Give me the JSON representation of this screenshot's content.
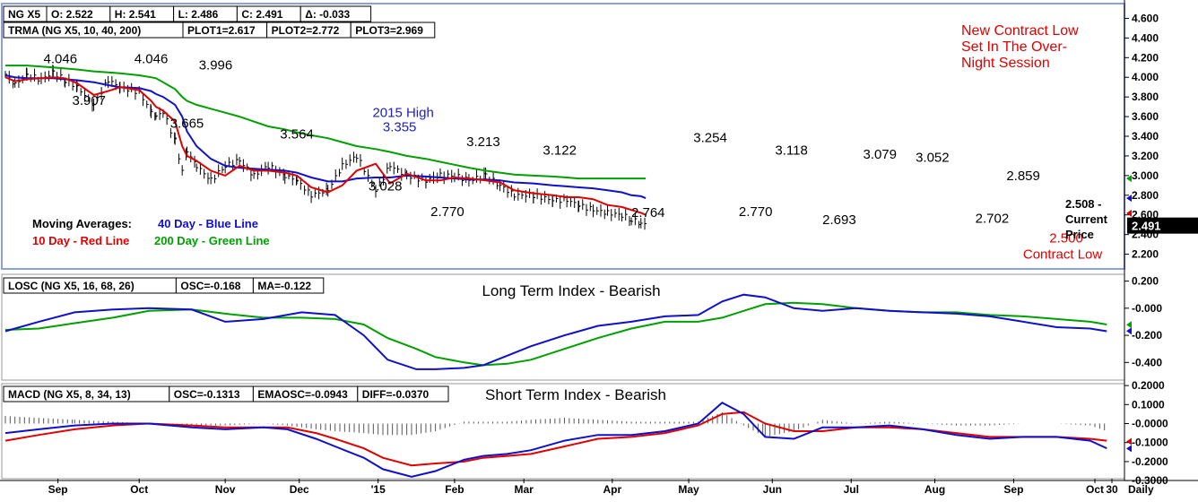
{
  "main_panel": {
    "info_bar_1": [
      "NG X5",
      "O: 2.522",
      "H: 2.541",
      "L: 2.486",
      "C: 2.491",
      "Δ: -0.033"
    ],
    "info_bar_2": [
      "TRMA (NG X5, 10, 40, 200)",
      "PLOT1=2.617",
      "PLOT2=2.772",
      "PLOT3=2.969"
    ],
    "legend": {
      "heading": "Moving Averages:",
      "ma40": "40 Day - Blue Line",
      "ma10": "10 Day - Red Line",
      "ma200": "200 Day - Green Line"
    },
    "note_lines": [
      "New Contract Low",
      "Set In The Over-",
      "Night Session"
    ],
    "current_price_lines": [
      "2.508 -",
      "Current",
      "Price"
    ],
    "last_price_tag": "2.491",
    "contract_low_label": "Contract Low",
    "high_annotation": "2015 High",
    "y_ticks": [
      "4.600",
      "4.400",
      "4.200",
      "4.000",
      "3.800",
      "3.600",
      "3.400",
      "3.200",
      "3.000",
      "2.800",
      "2.600",
      "2.400",
      "2.200"
    ],
    "ylim": [
      2.05,
      4.75
    ]
  },
  "losc_panel": {
    "info_bar": [
      "LOSC (NG X5, 16, 68, 26)",
      "OSC=-0.168",
      "MA=-0.122"
    ],
    "title": "Long Term Index - Bearish",
    "y_ticks": [
      "0.200",
      "-0.000",
      "-0.200",
      "-0.400"
    ],
    "ylim": [
      -0.53,
      0.25
    ]
  },
  "macd_panel": {
    "info_bar": [
      "MACD (NG X5, 8, 34, 13)",
      "OSC=-0.1313",
      "EMAOSC=-0.0943",
      "DIFF=-0.0370"
    ],
    "title": "Short Term Index - Bearish",
    "y_ticks": [
      "0.2000",
      "0.1000",
      "-0.0000",
      "-0.1000",
      "-0.2000",
      "-0.3000"
    ],
    "ylim": [
      -0.29,
      0.21
    ]
  },
  "x_axis": {
    "labels": [
      "Sep",
      "Oct",
      "Nov",
      "Dec",
      "'15",
      "Feb",
      "Mar",
      "Apr",
      "May",
      "Jun",
      "Jul",
      "Aug",
      "Sep",
      "Oct",
      "30"
    ],
    "frequency_label": "Daily"
  },
  "colors": {
    "ma10": "#e00000",
    "ma40": "#1010c8",
    "ma200": "#00a000",
    "annotation_red": "#e00000",
    "annotation_blue": "#2020c0",
    "frame_blue": "#8aa0e0",
    "bars": "#000000"
  },
  "chart_data": [
    {
      "type": "line",
      "title": "",
      "series_note": "NG X5 daily price with 10/40/200 day moving averages",
      "t": [
        0,
        4,
        9,
        15,
        20,
        25,
        30,
        37,
        43,
        48,
        56,
        61,
        63,
        66,
        71,
        74,
        76,
        80,
        86,
        92,
        98,
        104,
        110,
        117,
        122,
        128,
        135,
        141,
        147,
        155,
        161,
        168,
        176,
        182,
        188,
        194,
        201,
        207,
        213,
        221,
        229,
        235,
        240,
        246,
        252,
        258,
        262,
        266,
        268
      ],
      "close": [
        4.03,
        3.93,
        4.02,
        3.98,
        4.05,
        3.97,
        3.9,
        3.72,
        3.97,
        3.9,
        3.85,
        3.65,
        3.6,
        3.65,
        3.35,
        3.05,
        3.25,
        3.1,
        2.95,
        3.1,
        3.15,
        3.0,
        3.1,
        3.0,
        2.95,
        2.8,
        2.85,
        3.1,
        3.2,
        2.85,
        3.1,
        3.0,
        2.95,
        3.0,
        3.0,
        2.95,
        3.0,
        2.9,
        2.8,
        2.8,
        2.75,
        2.75,
        2.7,
        2.65,
        2.62,
        2.6,
        2.55,
        2.52,
        2.49
      ],
      "series": [
        {
          "name": "10 Day - Red Line",
          "values": [
            4.0,
            3.96,
            3.98,
            3.99,
            4.0,
            3.99,
            3.94,
            3.82,
            3.86,
            3.9,
            3.87,
            3.76,
            3.7,
            3.66,
            3.55,
            3.3,
            3.2,
            3.15,
            3.05,
            3.0,
            3.1,
            3.05,
            3.05,
            3.03,
            3.0,
            2.88,
            2.83,
            2.9,
            3.05,
            3.12,
            2.92,
            3.02,
            2.95,
            2.95,
            2.98,
            2.97,
            2.95,
            2.93,
            2.85,
            2.82,
            2.8,
            2.78,
            2.78,
            2.76,
            2.7,
            2.68,
            2.65,
            2.62,
            2.6
          ]
        },
        {
          "name": "40 Day - Blue Line",
          "values": [
            4.02,
            4.0,
            3.99,
            3.99,
            3.99,
            3.98,
            3.97,
            3.95,
            3.92,
            3.9,
            3.89,
            3.86,
            3.83,
            3.8,
            3.72,
            3.6,
            3.45,
            3.3,
            3.17,
            3.1,
            3.08,
            3.07,
            3.06,
            3.05,
            3.03,
            2.98,
            2.94,
            2.94,
            2.97,
            2.98,
            2.98,
            3.0,
            2.99,
            2.98,
            2.97,
            2.96,
            2.96,
            2.95,
            2.93,
            2.92,
            2.9,
            2.89,
            2.88,
            2.87,
            2.85,
            2.83,
            2.8,
            2.79,
            2.77
          ]
        },
        {
          "name": "200 Day - Green Line",
          "values": [
            4.12,
            4.12,
            4.12,
            4.11,
            4.1,
            4.09,
            4.08,
            4.06,
            4.05,
            4.04,
            4.02,
            4.0,
            3.99,
            3.95,
            3.88,
            3.8,
            3.76,
            3.72,
            3.68,
            3.64,
            3.6,
            3.55,
            3.5,
            3.47,
            3.44,
            3.41,
            3.38,
            3.34,
            3.3,
            3.27,
            3.24,
            3.2,
            3.17,
            3.14,
            3.11,
            3.08,
            3.05,
            3.03,
            3.01,
            3.0,
            2.99,
            2.98,
            2.97,
            2.97,
            2.97,
            2.97,
            2.97,
            2.97,
            2.97
          ]
        }
      ],
      "annotations": [
        {
          "label": "4.046",
          "t": 23,
          "value": 4.05
        },
        {
          "label": "3.907",
          "t": 35,
          "value": 3.9
        },
        {
          "label": "4.046",
          "t": 61,
          "value": 4.05
        },
        {
          "label": "3.996",
          "t": 88,
          "value": 3.99
        },
        {
          "label": "3.665",
          "t": 76,
          "value": 3.67
        },
        {
          "label": "3.564",
          "t": 122,
          "value": 3.56
        },
        {
          "label": "3.355",
          "t": 165,
          "value": 3.36
        },
        {
          "label": "3.028",
          "t": 159,
          "value": 3.03
        },
        {
          "label": "2.770",
          "t": 185,
          "value": 2.77
        },
        {
          "label": "3.213",
          "t": 200,
          "value": 3.21
        },
        {
          "label": "3.122",
          "t": 232,
          "value": 3.12
        },
        {
          "label": "2.764",
          "t": 269,
          "value": 2.76
        },
        {
          "label": "3.254",
          "t": 295,
          "value": 3.25
        },
        {
          "label": "2.770",
          "t": 314,
          "value": 2.77
        },
        {
          "label": "3.118",
          "t": 329,
          "value": 3.12
        },
        {
          "label": "2.693",
          "t": 349,
          "value": 2.69
        },
        {
          "label": "3.079",
          "t": 366,
          "value": 3.08
        },
        {
          "label": "3.052",
          "t": 388,
          "value": 3.05
        },
        {
          "label": "2.859",
          "t": 426,
          "value": 2.86
        },
        {
          "label": "2.702",
          "t": 413,
          "value": 2.7
        },
        {
          "label": "2.500",
          "t": 444,
          "value": 2.5
        }
      ]
    },
    {
      "type": "line",
      "title": "Long Term Index - Bearish",
      "t": [
        0,
        14,
        29,
        45,
        60,
        78,
        92,
        108,
        124,
        138,
        150,
        160,
        172,
        180,
        192,
        200,
        210,
        220,
        234,
        248,
        262,
        276,
        290,
        300,
        309,
        318,
        330,
        342,
        356,
        370,
        384,
        398,
        412,
        426,
        440,
        454,
        461
      ],
      "series": [
        {
          "name": "OSC",
          "values": [
            -0.17,
            -0.1,
            -0.03,
            -0.01,
            0.0,
            -0.01,
            -0.1,
            -0.08,
            -0.03,
            -0.05,
            -0.2,
            -0.38,
            -0.45,
            -0.45,
            -0.44,
            -0.42,
            -0.35,
            -0.28,
            -0.2,
            -0.13,
            -0.1,
            -0.06,
            -0.05,
            0.05,
            0.1,
            0.08,
            0.0,
            -0.02,
            0.0,
            -0.02,
            -0.03,
            -0.04,
            -0.06,
            -0.1,
            -0.14,
            -0.15,
            -0.17
          ]
        },
        {
          "name": "MA",
          "values": [
            -0.16,
            -0.15,
            -0.11,
            -0.07,
            -0.02,
            -0.01,
            -0.04,
            -0.07,
            -0.07,
            -0.08,
            -0.12,
            -0.22,
            -0.3,
            -0.36,
            -0.4,
            -0.42,
            -0.41,
            -0.38,
            -0.3,
            -0.22,
            -0.15,
            -0.1,
            -0.1,
            -0.07,
            -0.02,
            0.03,
            0.04,
            0.03,
            0.0,
            -0.02,
            -0.03,
            -0.03,
            -0.05,
            -0.06,
            -0.08,
            -0.1,
            -0.12
          ]
        }
      ]
    },
    {
      "type": "line",
      "title": "Short Term Index - Bearish",
      "t": [
        0,
        14,
        29,
        45,
        60,
        78,
        92,
        108,
        118,
        130,
        138,
        150,
        158,
        170,
        180,
        192,
        200,
        210,
        220,
        234,
        248,
        262,
        276,
        290,
        300,
        309,
        318,
        330,
        342,
        356,
        370,
        384,
        398,
        412,
        426,
        440,
        454,
        461
      ],
      "series": [
        {
          "name": "OSC (blue)",
          "values": [
            -0.05,
            -0.03,
            -0.01,
            0.0,
            0.0,
            -0.02,
            -0.03,
            -0.02,
            -0.03,
            -0.08,
            -0.12,
            -0.18,
            -0.24,
            -0.28,
            -0.25,
            -0.19,
            -0.17,
            -0.16,
            -0.14,
            -0.09,
            -0.06,
            -0.06,
            -0.04,
            0.0,
            0.11,
            0.05,
            -0.07,
            -0.08,
            -0.02,
            -0.02,
            -0.01,
            -0.03,
            -0.06,
            -0.08,
            -0.07,
            -0.07,
            -0.09,
            -0.13
          ]
        },
        {
          "name": "EMAOSC (red)",
          "values": [
            -0.09,
            -0.06,
            -0.03,
            -0.01,
            0.0,
            -0.01,
            -0.02,
            -0.02,
            -0.02,
            -0.05,
            -0.08,
            -0.13,
            -0.18,
            -0.22,
            -0.21,
            -0.2,
            -0.18,
            -0.17,
            -0.16,
            -0.12,
            -0.08,
            -0.07,
            -0.05,
            -0.01,
            0.05,
            0.06,
            0.0,
            -0.04,
            -0.04,
            -0.02,
            -0.02,
            -0.03,
            -0.05,
            -0.07,
            -0.07,
            -0.07,
            -0.08,
            -0.09
          ]
        },
        {
          "name": "DIFF (histogram)",
          "values": [
            0.04,
            0.03,
            0.02,
            0.01,
            0.0,
            -0.01,
            -0.01,
            0.0,
            -0.01,
            -0.03,
            -0.04,
            -0.05,
            -0.06,
            -0.06,
            -0.04,
            0.01,
            0.01,
            0.01,
            0.02,
            0.03,
            0.02,
            0.01,
            0.01,
            0.01,
            0.06,
            -0.01,
            -0.07,
            -0.04,
            0.02,
            0.0,
            0.01,
            0.0,
            -0.01,
            -0.01,
            0.0,
            0.0,
            -0.01,
            -0.04
          ]
        }
      ]
    }
  ]
}
